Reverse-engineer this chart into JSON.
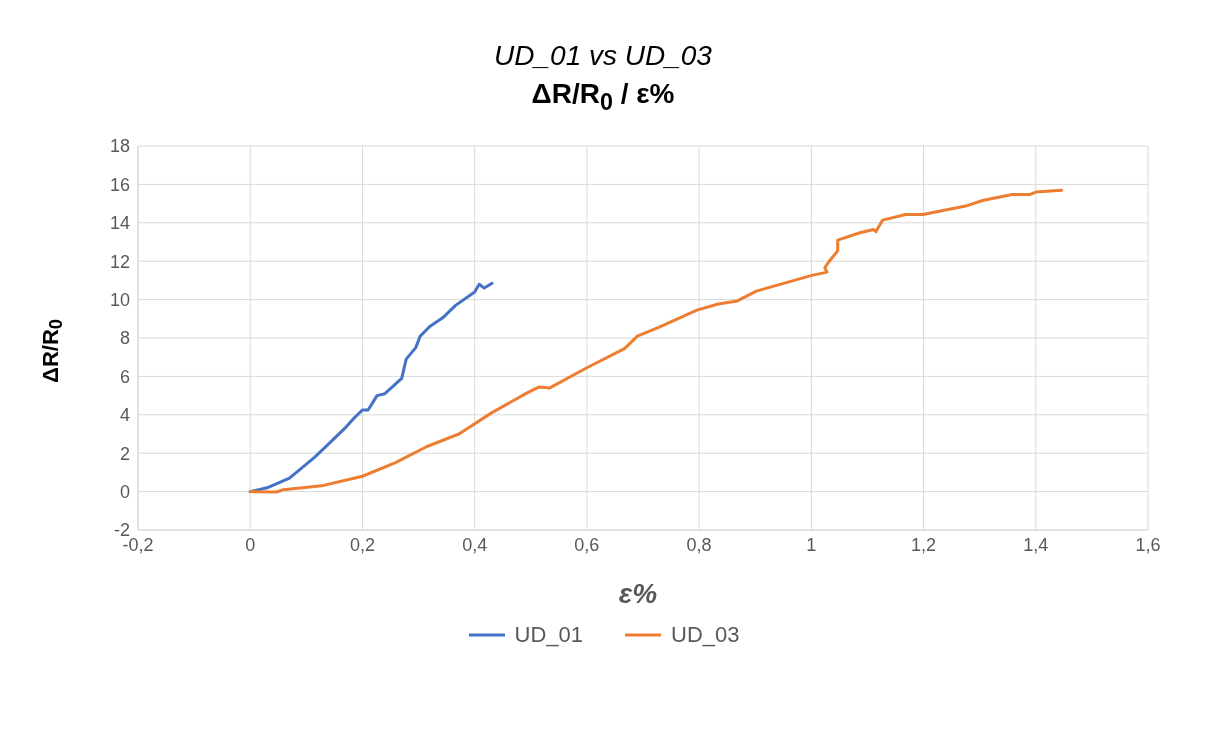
{
  "chart_data": {
    "type": "line",
    "title": "UD_01 vs UD_03",
    "subtitle": "ΔR/R$_{0}$ / ε%",
    "xlabel": "ε%",
    "ylabel": "ΔR/R$_{0}$",
    "xlim": [
      -0.2,
      1.6
    ],
    "xticks": [
      {
        "value": -0.2,
        "label": "-0,2"
      },
      0,
      {
        "value": 0.2,
        "label": "0,2"
      },
      {
        "value": 0.4,
        "label": "0,4"
      },
      {
        "value": 0.6,
        "label": "0,6"
      },
      {
        "value": 0.8,
        "label": "0,8"
      },
      1,
      {
        "value": 1.2,
        "label": "1,2"
      },
      {
        "value": 1.4,
        "label": "1,4"
      },
      {
        "value": 1.6,
        "label": "1,6"
      }
    ],
    "ylim": [
      -2,
      18
    ],
    "yticks": [
      -2,
      0,
      2,
      4,
      6,
      8,
      10,
      12,
      14,
      16,
      18
    ],
    "grid": true,
    "legend": "bottom",
    "marker": "none",
    "line_style": "solid",
    "series": [
      {
        "name": "UD_01",
        "color": "#4472c4",
        "x": [
          0,
          0.03,
          0.07,
          0.115,
          0.144,
          0.172,
          0.184,
          0.2,
          0.21,
          0.226,
          0.24,
          0.27,
          0.278,
          0.295,
          0.303,
          0.32,
          0.343,
          0.366,
          0.4,
          0.408,
          0.417,
          0.431
        ],
        "values": [
          0,
          0.2,
          0.7,
          1.8,
          2.6,
          3.4,
          3.8,
          4.25,
          4.25,
          5.0,
          5.1,
          5.9,
          6.9,
          7.5,
          8.1,
          8.6,
          9.05,
          9.7,
          10.4,
          10.8,
          10.6,
          10.85
        ]
      },
      {
        "name": "UD_03",
        "color": "#ed7d31",
        "x": [
          0,
          0.047,
          0.059,
          0.127,
          0.2,
          0.258,
          0.315,
          0.372,
          0.43,
          0.491,
          0.515,
          0.534,
          0.6,
          0.667,
          0.69,
          0.728,
          0.796,
          0.834,
          0.868,
          0.902,
          1.001,
          1.028,
          1.024,
          1.032,
          1.047,
          1.047,
          1.085,
          1.111,
          1.115,
          1.127,
          1.168,
          1.199,
          1.275,
          1.305,
          1.358,
          1.389,
          1.4,
          1.446
        ],
        "values": [
          0,
          -0.02,
          0.1,
          0.3,
          0.8,
          1.5,
          2.35,
          3.0,
          4.1,
          5.1,
          5.45,
          5.4,
          6.45,
          7.45,
          8.1,
          8.55,
          9.45,
          9.77,
          9.93,
          10.44,
          11.26,
          11.43,
          11.66,
          12.0,
          12.54,
          13.1,
          13.47,
          13.65,
          13.54,
          14.14,
          14.43,
          14.43,
          14.87,
          15.16,
          15.47,
          15.47,
          15.6,
          15.69
        ]
      }
    ]
  }
}
